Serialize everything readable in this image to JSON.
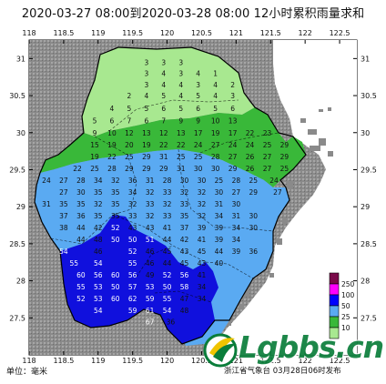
{
  "title": "2020-03-27 08:00到2020-03-28 08:00 12小时累积雨量求和",
  "unit_label": "单位：毫米",
  "publisher": "浙江省气象台 03月28日06时发布",
  "watermark": "Lgbbs.cn",
  "axes": {
    "x_ticks": [
      "118",
      "118.5",
      "119",
      "119.5",
      "120",
      "120.5",
      "121",
      "121.5",
      "122",
      "122.5"
    ],
    "y_ticks": [
      "31",
      "30.5",
      "30",
      "29.5",
      "29",
      "28.5",
      "28",
      "27.5"
    ]
  },
  "legend": {
    "levels": [
      "250",
      "100",
      "50",
      "25",
      "10"
    ],
    "colors": [
      "#7a0a4a",
      "#ff00ff",
      "#0000ff",
      "#5aaaf2",
      "#39b839",
      "#a8e890"
    ]
  },
  "colors": {
    "green_light": "#a8e890",
    "green": "#39b839",
    "blue_light": "#5aaaf2",
    "blue": "#1010dd",
    "grey": "#8c8c8c",
    "outline": "#000000"
  },
  "chart_data": {
    "type": "heatmap",
    "title": "2020-03-27 08:00到2020-03-28 08:00 12小时累积雨量求和",
    "unit": "毫米",
    "xlim": [
      118,
      122.75
    ],
    "ylim": [
      27.0,
      31.25
    ],
    "points": [
      {
        "lon": 119.7,
        "lat": 30.95,
        "v": "3"
      },
      {
        "lon": 119.95,
        "lat": 30.95,
        "v": "3"
      },
      {
        "lon": 120.2,
        "lat": 30.95,
        "v": "3"
      },
      {
        "lon": 119.7,
        "lat": 30.8,
        "v": "3"
      },
      {
        "lon": 119.95,
        "lat": 30.8,
        "v": "4"
      },
      {
        "lon": 120.2,
        "lat": 30.8,
        "v": "3"
      },
      {
        "lon": 120.45,
        "lat": 30.8,
        "v": "4"
      },
      {
        "lon": 120.7,
        "lat": 30.8,
        "v": "1"
      },
      {
        "lon": 119.7,
        "lat": 30.65,
        "v": "3"
      },
      {
        "lon": 119.95,
        "lat": 30.65,
        "v": "4"
      },
      {
        "lon": 120.2,
        "lat": 30.65,
        "v": "4"
      },
      {
        "lon": 120.45,
        "lat": 30.65,
        "v": "3"
      },
      {
        "lon": 120.7,
        "lat": 30.65,
        "v": "4"
      },
      {
        "lon": 120.95,
        "lat": 30.65,
        "v": "2"
      },
      {
        "lon": 119.45,
        "lat": 30.5,
        "v": "2"
      },
      {
        "lon": 119.7,
        "lat": 30.5,
        "v": "4"
      },
      {
        "lon": 119.95,
        "lat": 30.5,
        "v": "5"
      },
      {
        "lon": 120.2,
        "lat": 30.5,
        "v": "4"
      },
      {
        "lon": 120.45,
        "lat": 30.5,
        "v": "5"
      },
      {
        "lon": 120.7,
        "lat": 30.5,
        "v": "4"
      },
      {
        "lon": 120.95,
        "lat": 30.5,
        "v": "3"
      },
      {
        "lon": 119.2,
        "lat": 30.33,
        "v": "4"
      },
      {
        "lon": 119.45,
        "lat": 30.33,
        "v": "5"
      },
      {
        "lon": 119.7,
        "lat": 30.33,
        "v": "5"
      },
      {
        "lon": 119.95,
        "lat": 30.33,
        "v": "6"
      },
      {
        "lon": 120.2,
        "lat": 30.33,
        "v": "5"
      },
      {
        "lon": 120.45,
        "lat": 30.33,
        "v": "6"
      },
      {
        "lon": 120.7,
        "lat": 30.33,
        "v": "5"
      },
      {
        "lon": 120.95,
        "lat": 30.33,
        "v": "6"
      },
      {
        "lon": 118.95,
        "lat": 30.16,
        "v": "5"
      },
      {
        "lon": 119.2,
        "lat": 30.16,
        "v": "6"
      },
      {
        "lon": 119.45,
        "lat": 30.16,
        "v": "7"
      },
      {
        "lon": 119.7,
        "lat": 30.16,
        "v": "6"
      },
      {
        "lon": 119.95,
        "lat": 30.16,
        "v": "7"
      },
      {
        "lon": 120.2,
        "lat": 30.16,
        "v": "9"
      },
      {
        "lon": 120.45,
        "lat": 30.16,
        "v": "9"
      },
      {
        "lon": 120.7,
        "lat": 30.16,
        "v": "10"
      },
      {
        "lon": 120.95,
        "lat": 30.16,
        "v": "13"
      },
      {
        "lon": 118.95,
        "lat": 30.0,
        "v": "9"
      },
      {
        "lon": 119.2,
        "lat": 30.0,
        "v": "10"
      },
      {
        "lon": 119.45,
        "lat": 30.0,
        "v": "12"
      },
      {
        "lon": 119.7,
        "lat": 30.0,
        "v": "13"
      },
      {
        "lon": 119.95,
        "lat": 30.0,
        "v": "12"
      },
      {
        "lon": 120.2,
        "lat": 30.0,
        "v": "13"
      },
      {
        "lon": 120.45,
        "lat": 30.0,
        "v": "17"
      },
      {
        "lon": 120.7,
        "lat": 30.0,
        "v": "19"
      },
      {
        "lon": 120.95,
        "lat": 30.0,
        "v": "17"
      },
      {
        "lon": 121.2,
        "lat": 30.0,
        "v": "22"
      },
      {
        "lon": 121.45,
        "lat": 30.0,
        "v": "23"
      },
      {
        "lon": 118.95,
        "lat": 29.84,
        "v": "15"
      },
      {
        "lon": 119.2,
        "lat": 29.84,
        "v": "19"
      },
      {
        "lon": 119.45,
        "lat": 29.84,
        "v": "20"
      },
      {
        "lon": 119.7,
        "lat": 29.84,
        "v": "19"
      },
      {
        "lon": 119.95,
        "lat": 29.84,
        "v": "22"
      },
      {
        "lon": 120.2,
        "lat": 29.84,
        "v": "22"
      },
      {
        "lon": 120.45,
        "lat": 29.84,
        "v": "24"
      },
      {
        "lon": 120.7,
        "lat": 29.84,
        "v": "27"
      },
      {
        "lon": 120.95,
        "lat": 29.84,
        "v": "24"
      },
      {
        "lon": 121.2,
        "lat": 29.84,
        "v": "24"
      },
      {
        "lon": 121.45,
        "lat": 29.84,
        "v": "25"
      },
      {
        "lon": 121.7,
        "lat": 29.84,
        "v": "29"
      },
      {
        "lon": 118.95,
        "lat": 29.68,
        "v": "19"
      },
      {
        "lon": 119.2,
        "lat": 29.68,
        "v": "22"
      },
      {
        "lon": 119.45,
        "lat": 29.68,
        "v": "25"
      },
      {
        "lon": 119.7,
        "lat": 29.68,
        "v": "29"
      },
      {
        "lon": 119.95,
        "lat": 29.68,
        "v": "31"
      },
      {
        "lon": 120.2,
        "lat": 29.68,
        "v": "25"
      },
      {
        "lon": 120.45,
        "lat": 29.68,
        "v": "25"
      },
      {
        "lon": 120.7,
        "lat": 29.68,
        "v": "28"
      },
      {
        "lon": 120.95,
        "lat": 29.68,
        "v": "27"
      },
      {
        "lon": 121.2,
        "lat": 29.68,
        "v": "26"
      },
      {
        "lon": 121.45,
        "lat": 29.68,
        "v": "27"
      },
      {
        "lon": 121.7,
        "lat": 29.68,
        "v": "29"
      },
      {
        "lon": 118.7,
        "lat": 29.52,
        "v": "22"
      },
      {
        "lon": 118.95,
        "lat": 29.52,
        "v": "25"
      },
      {
        "lon": 119.2,
        "lat": 29.52,
        "v": "28"
      },
      {
        "lon": 119.45,
        "lat": 29.52,
        "v": "29"
      },
      {
        "lon": 119.7,
        "lat": 29.52,
        "v": "29"
      },
      {
        "lon": 119.95,
        "lat": 29.52,
        "v": "29"
      },
      {
        "lon": 120.2,
        "lat": 29.52,
        "v": "31"
      },
      {
        "lon": 120.45,
        "lat": 29.52,
        "v": "30"
      },
      {
        "lon": 120.7,
        "lat": 29.52,
        "v": "30"
      },
      {
        "lon": 120.95,
        "lat": 29.52,
        "v": "29"
      },
      {
        "lon": 121.2,
        "lat": 29.52,
        "v": "26"
      },
      {
        "lon": 121.45,
        "lat": 29.52,
        "v": "27"
      },
      {
        "lon": 121.7,
        "lat": 29.52,
        "v": "25"
      },
      {
        "lon": 118.25,
        "lat": 29.36,
        "v": "24"
      },
      {
        "lon": 118.5,
        "lat": 29.36,
        "v": "27"
      },
      {
        "lon": 118.75,
        "lat": 29.36,
        "v": "28"
      },
      {
        "lon": 119.0,
        "lat": 29.36,
        "v": "34"
      },
      {
        "lon": 119.25,
        "lat": 29.36,
        "v": "32"
      },
      {
        "lon": 119.5,
        "lat": 29.36,
        "v": "36"
      },
      {
        "lon": 119.75,
        "lat": 29.36,
        "v": "31"
      },
      {
        "lon": 120.0,
        "lat": 29.36,
        "v": "28"
      },
      {
        "lon": 120.25,
        "lat": 29.36,
        "v": "30"
      },
      {
        "lon": 120.5,
        "lat": 29.36,
        "v": "30"
      },
      {
        "lon": 120.75,
        "lat": 29.36,
        "v": "25"
      },
      {
        "lon": 121.0,
        "lat": 29.36,
        "v": "28"
      },
      {
        "lon": 121.25,
        "lat": 29.36,
        "v": "25"
      },
      {
        "lon": 121.55,
        "lat": 29.36,
        "v": "24"
      },
      {
        "lon": 118.5,
        "lat": 29.2,
        "v": "27"
      },
      {
        "lon": 118.75,
        "lat": 29.2,
        "v": "30"
      },
      {
        "lon": 119.0,
        "lat": 29.2,
        "v": "35"
      },
      {
        "lon": 119.25,
        "lat": 29.2,
        "v": "35"
      },
      {
        "lon": 119.5,
        "lat": 29.2,
        "v": "34"
      },
      {
        "lon": 119.75,
        "lat": 29.2,
        "v": "32"
      },
      {
        "lon": 120.0,
        "lat": 29.2,
        "v": "33"
      },
      {
        "lon": 120.25,
        "lat": 29.2,
        "v": "32"
      },
      {
        "lon": 120.5,
        "lat": 29.2,
        "v": "32"
      },
      {
        "lon": 120.75,
        "lat": 29.2,
        "v": "30"
      },
      {
        "lon": 121.0,
        "lat": 29.2,
        "v": "27"
      },
      {
        "lon": 121.25,
        "lat": 29.2,
        "v": "29"
      },
      {
        "lon": 121.6,
        "lat": 29.2,
        "v": "27"
      },
      {
        "lon": 118.25,
        "lat": 29.04,
        "v": "31"
      },
      {
        "lon": 118.5,
        "lat": 29.04,
        "v": "35"
      },
      {
        "lon": 118.75,
        "lat": 29.04,
        "v": "35"
      },
      {
        "lon": 119.0,
        "lat": 29.04,
        "v": "32"
      },
      {
        "lon": 119.25,
        "lat": 29.04,
        "v": "35"
      },
      {
        "lon": 119.5,
        "lat": 29.04,
        "v": "32"
      },
      {
        "lon": 119.75,
        "lat": 29.04,
        "v": "33"
      },
      {
        "lon": 120.0,
        "lat": 29.04,
        "v": "32"
      },
      {
        "lon": 120.25,
        "lat": 29.04,
        "v": "33"
      },
      {
        "lon": 120.5,
        "lat": 29.04,
        "v": "32"
      },
      {
        "lon": 120.75,
        "lat": 29.04,
        "v": "31"
      },
      {
        "lon": 121.0,
        "lat": 29.04,
        "v": "30"
      },
      {
        "lon": 118.5,
        "lat": 28.88,
        "v": "37"
      },
      {
        "lon": 118.75,
        "lat": 28.88,
        "v": "36"
      },
      {
        "lon": 119.0,
        "lat": 28.88,
        "v": "35"
      },
      {
        "lon": 119.25,
        "lat": 28.88,
        "v": "35"
      },
      {
        "lon": 119.5,
        "lat": 28.88,
        "v": "33"
      },
      {
        "lon": 119.75,
        "lat": 28.88,
        "v": "32"
      },
      {
        "lon": 120.0,
        "lat": 28.88,
        "v": "33"
      },
      {
        "lon": 120.25,
        "lat": 28.88,
        "v": "35"
      },
      {
        "lon": 120.5,
        "lat": 28.88,
        "v": "32"
      },
      {
        "lon": 120.75,
        "lat": 28.88,
        "v": "34"
      },
      {
        "lon": 121.0,
        "lat": 28.88,
        "v": "31"
      },
      {
        "lon": 121.25,
        "lat": 28.88,
        "v": "30"
      },
      {
        "lon": 118.5,
        "lat": 28.72,
        "v": "38"
      },
      {
        "lon": 118.75,
        "lat": 28.72,
        "v": "44"
      },
      {
        "lon": 119.0,
        "lat": 28.72,
        "v": "42"
      },
      {
        "lon": 119.25,
        "lat": 28.72,
        "v": "52"
      },
      {
        "lon": 119.5,
        "lat": 28.72,
        "v": "43"
      },
      {
        "lon": 119.75,
        "lat": 28.72,
        "v": "43"
      },
      {
        "lon": 120.0,
        "lat": 28.72,
        "v": "41"
      },
      {
        "lon": 120.25,
        "lat": 28.72,
        "v": "37"
      },
      {
        "lon": 120.5,
        "lat": 28.72,
        "v": "39"
      },
      {
        "lon": 120.75,
        "lat": 28.72,
        "v": "39"
      },
      {
        "lon": 121.0,
        "lat": 28.72,
        "v": "34"
      },
      {
        "lon": 121.25,
        "lat": 28.72,
        "v": "30"
      },
      {
        "lon": 118.75,
        "lat": 28.56,
        "v": "44"
      },
      {
        "lon": 119.0,
        "lat": 28.56,
        "v": "48"
      },
      {
        "lon": 119.25,
        "lat": 28.56,
        "v": "50"
      },
      {
        "lon": 119.5,
        "lat": 28.56,
        "v": "50"
      },
      {
        "lon": 119.75,
        "lat": 28.56,
        "v": "51"
      },
      {
        "lon": 120.0,
        "lat": 28.56,
        "v": "44"
      },
      {
        "lon": 120.25,
        "lat": 28.56,
        "v": "42"
      },
      {
        "lon": 120.5,
        "lat": 28.56,
        "v": "41"
      },
      {
        "lon": 120.75,
        "lat": 28.56,
        "v": "39"
      },
      {
        "lon": 121.0,
        "lat": 28.56,
        "v": "34"
      },
      {
        "lon": 118.5,
        "lat": 28.4,
        "v": "54"
      },
      {
        "lon": 119.0,
        "lat": 28.4,
        "v": "46"
      },
      {
        "lon": 119.5,
        "lat": 28.4,
        "v": "52"
      },
      {
        "lon": 119.75,
        "lat": 28.4,
        "v": "46"
      },
      {
        "lon": 120.0,
        "lat": 28.4,
        "v": "45"
      },
      {
        "lon": 120.25,
        "lat": 28.4,
        "v": "43"
      },
      {
        "lon": 120.5,
        "lat": 28.4,
        "v": "45"
      },
      {
        "lon": 120.75,
        "lat": 28.4,
        "v": "44"
      },
      {
        "lon": 121.0,
        "lat": 28.4,
        "v": "39"
      },
      {
        "lon": 121.25,
        "lat": 28.4,
        "v": "36"
      },
      {
        "lon": 118.65,
        "lat": 28.24,
        "v": "55"
      },
      {
        "lon": 119.0,
        "lat": 28.24,
        "v": "54"
      },
      {
        "lon": 119.5,
        "lat": 28.24,
        "v": "55"
      },
      {
        "lon": 119.75,
        "lat": 28.24,
        "v": "46"
      },
      {
        "lon": 120.0,
        "lat": 28.24,
        "v": "44"
      },
      {
        "lon": 120.25,
        "lat": 28.24,
        "v": "45"
      },
      {
        "lon": 120.5,
        "lat": 28.24,
        "v": "43"
      },
      {
        "lon": 120.75,
        "lat": 28.24,
        "v": "40"
      },
      {
        "lon": 118.75,
        "lat": 28.08,
        "v": "60"
      },
      {
        "lon": 119.0,
        "lat": 28.08,
        "v": "56"
      },
      {
        "lon": 119.25,
        "lat": 28.08,
        "v": "60"
      },
      {
        "lon": 119.5,
        "lat": 28.08,
        "v": "56"
      },
      {
        "lon": 119.75,
        "lat": 28.08,
        "v": "49"
      },
      {
        "lon": 120.0,
        "lat": 28.08,
        "v": "52"
      },
      {
        "lon": 120.25,
        "lat": 28.08,
        "v": "56"
      },
      {
        "lon": 120.5,
        "lat": 28.08,
        "v": "41"
      },
      {
        "lon": 118.75,
        "lat": 27.92,
        "v": "55"
      },
      {
        "lon": 119.0,
        "lat": 27.92,
        "v": "53"
      },
      {
        "lon": 119.25,
        "lat": 27.92,
        "v": "50"
      },
      {
        "lon": 119.5,
        "lat": 27.92,
        "v": "57"
      },
      {
        "lon": 119.75,
        "lat": 27.92,
        "v": "53"
      },
      {
        "lon": 120.0,
        "lat": 27.92,
        "v": "50"
      },
      {
        "lon": 120.25,
        "lat": 27.92,
        "v": "58"
      },
      {
        "lon": 120.5,
        "lat": 27.92,
        "v": "34"
      },
      {
        "lon": 118.75,
        "lat": 27.76,
        "v": "52"
      },
      {
        "lon": 119.0,
        "lat": 27.76,
        "v": "53"
      },
      {
        "lon": 119.25,
        "lat": 27.76,
        "v": "60"
      },
      {
        "lon": 119.5,
        "lat": 27.76,
        "v": "62"
      },
      {
        "lon": 119.75,
        "lat": 27.76,
        "v": "59"
      },
      {
        "lon": 120.0,
        "lat": 27.76,
        "v": "55"
      },
      {
        "lon": 120.25,
        "lat": 27.76,
        "v": "47"
      },
      {
        "lon": 120.5,
        "lat": 27.76,
        "v": "34"
      },
      {
        "lon": 119.0,
        "lat": 27.6,
        "v": "54"
      },
      {
        "lon": 119.5,
        "lat": 27.6,
        "v": "59"
      },
      {
        "lon": 119.75,
        "lat": 27.6,
        "v": "61"
      },
      {
        "lon": 120.0,
        "lat": 27.6,
        "v": "54"
      },
      {
        "lon": 120.25,
        "lat": 27.6,
        "v": "48"
      },
      {
        "lon": 119.75,
        "lat": 27.45,
        "v": "67"
      },
      {
        "lon": 120.05,
        "lat": 27.45,
        "v": "36"
      }
    ]
  }
}
